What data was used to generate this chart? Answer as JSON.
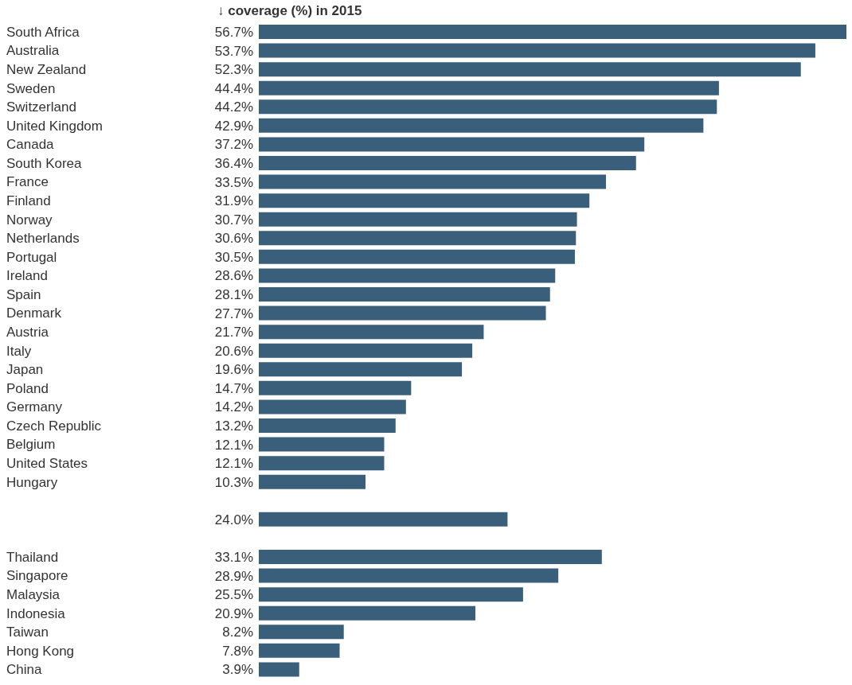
{
  "chart_data": {
    "type": "bar",
    "orientation": "horizontal",
    "title": "↓ coverage (%) in 2015",
    "color": "#3a5f7a",
    "categories": [
      "South Africa",
      "Australia",
      "New Zealand",
      "Sweden",
      "Switzerland",
      "United Kingdom",
      "Canada",
      "South Korea",
      "France",
      "Finland",
      "Norway",
      "Netherlands",
      "Portugal",
      "Ireland",
      "Spain",
      "Denmark",
      "Austria",
      "Italy",
      "Japan",
      "Poland",
      "Germany",
      "Czech Republic",
      "Belgium",
      "United States",
      "Hungary",
      null,
      null,
      null,
      "Thailand",
      "Singapore",
      "Malaysia",
      "Indonesia",
      "Taiwan",
      "Hong Kong",
      "China"
    ],
    "values": [
      56.7,
      53.7,
      52.3,
      44.4,
      44.2,
      42.9,
      37.2,
      36.4,
      33.5,
      31.9,
      30.7,
      30.6,
      30.5,
      28.6,
      28.1,
      27.7,
      21.7,
      20.6,
      19.6,
      14.7,
      14.2,
      13.2,
      12.1,
      12.1,
      10.3,
      null,
      24.0,
      null,
      33.1,
      28.9,
      25.5,
      20.9,
      8.2,
      7.8,
      3.9
    ],
    "value_labels": [
      "56.7%",
      "53.7%",
      "52.3%",
      "44.4%",
      "44.2%",
      "42.9%",
      "37.2%",
      "36.4%",
      "33.5%",
      "31.9%",
      "30.7%",
      "30.6%",
      "30.5%",
      "28.6%",
      "28.1%",
      "27.7%",
      "21.7%",
      "20.6%",
      "19.6%",
      "14.7%",
      "14.2%",
      "13.2%",
      "12.1%",
      "12.1%",
      "10.3%",
      null,
      "24.0%",
      null,
      "33.1%",
      "28.9%",
      "25.5%",
      "20.9%",
      "8.2%",
      "7.8%",
      "3.9%"
    ]
  }
}
